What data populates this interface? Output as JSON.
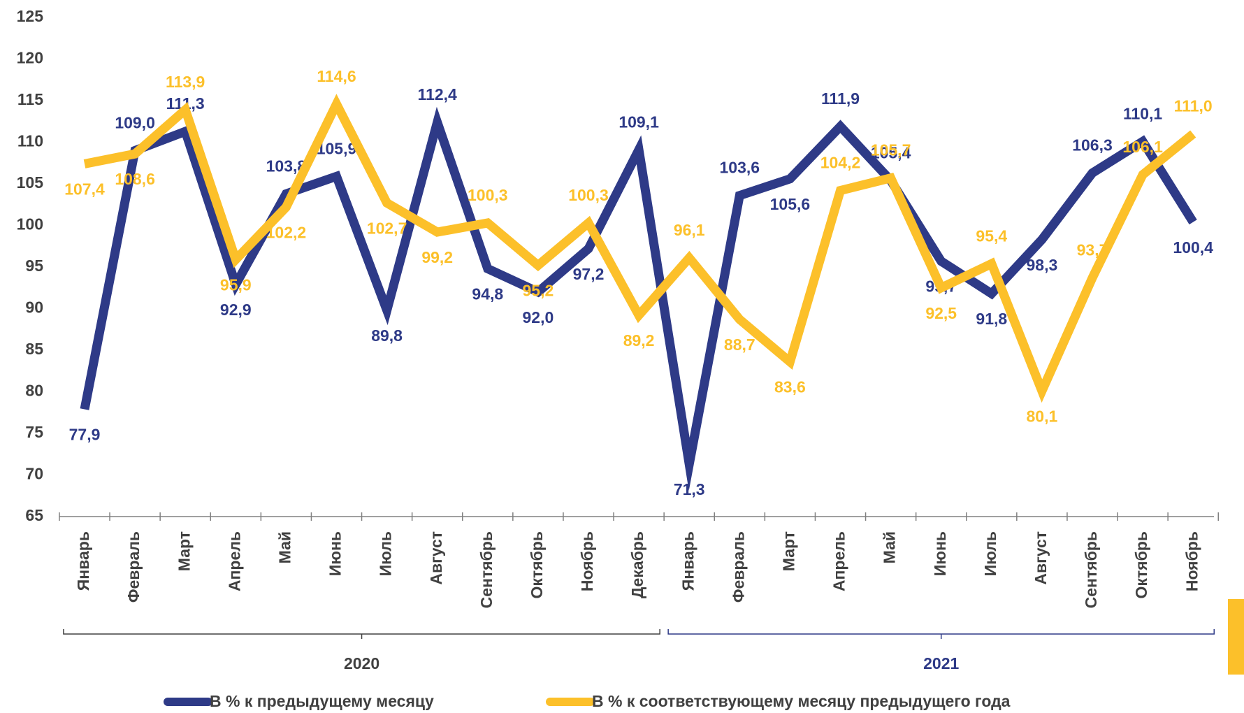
{
  "chart_data": {
    "type": "line",
    "groups": [
      {
        "name": "2020",
        "categories": [
          "Январь",
          "Февраль",
          "Март",
          "Апрель",
          "Май",
          "Июнь",
          "Июль",
          "Август",
          "Сентябрь",
          "Октябрь",
          "Ноябрь",
          "Декабрь"
        ]
      },
      {
        "name": "2021",
        "categories": [
          "Январь",
          "Февраль",
          "Март",
          "Апрель",
          "Май",
          "Июнь",
          "Июль",
          "Август",
          "Сентябрь",
          "Октябрь",
          "Ноябрь"
        ]
      }
    ],
    "series": [
      {
        "name": "В % к предыдущему месяцу",
        "color": "#2e3a87",
        "values": [
          77.9,
          109.0,
          111.3,
          92.9,
          103.8,
          105.9,
          89.8,
          112.4,
          94.8,
          92.0,
          97.2,
          109.1,
          71.3,
          103.6,
          105.6,
          111.9,
          105.4,
          95.7,
          91.8,
          98.3,
          106.3,
          110.1,
          100.4
        ],
        "value_labels": [
          "77,9",
          "109,0",
          "111,3",
          "92,9",
          "103,8",
          "105,9",
          "89,8",
          "112,4",
          "94,8",
          "92,0",
          "97,2",
          "109,1",
          "71,3",
          "103,6",
          "105,6",
          "111,9",
          "105,4",
          "95,7",
          "91,8",
          "98,3",
          "106,3",
          "110,1",
          "100,4"
        ]
      },
      {
        "name": "В % к соответствующему месяцу предыдущего года",
        "color": "#fcc02a",
        "values": [
          107.4,
          108.6,
          113.9,
          95.9,
          102.2,
          114.6,
          102.7,
          99.2,
          100.3,
          95.2,
          100.3,
          89.2,
          96.1,
          88.7,
          83.6,
          104.2,
          105.7,
          92.5,
          95.4,
          80.1,
          93.7,
          106.1,
          111.0
        ],
        "value_labels": [
          "107,4",
          "108,6",
          "113,9",
          "95,9",
          "102,2",
          "114,6",
          "102,7",
          "99,2",
          "100,3",
          "95,2",
          "100,3",
          "89,2",
          "96,1",
          "88,7",
          "83,6",
          "104,2",
          "105,7",
          "92,5",
          "95,4",
          "80,1",
          "93,7",
          "106,1",
          "111,0"
        ]
      }
    ],
    "ylim": [
      65,
      125
    ],
    "yticks": [
      65,
      70,
      75,
      80,
      85,
      90,
      95,
      100,
      105,
      110,
      115,
      120,
      125
    ]
  }
}
